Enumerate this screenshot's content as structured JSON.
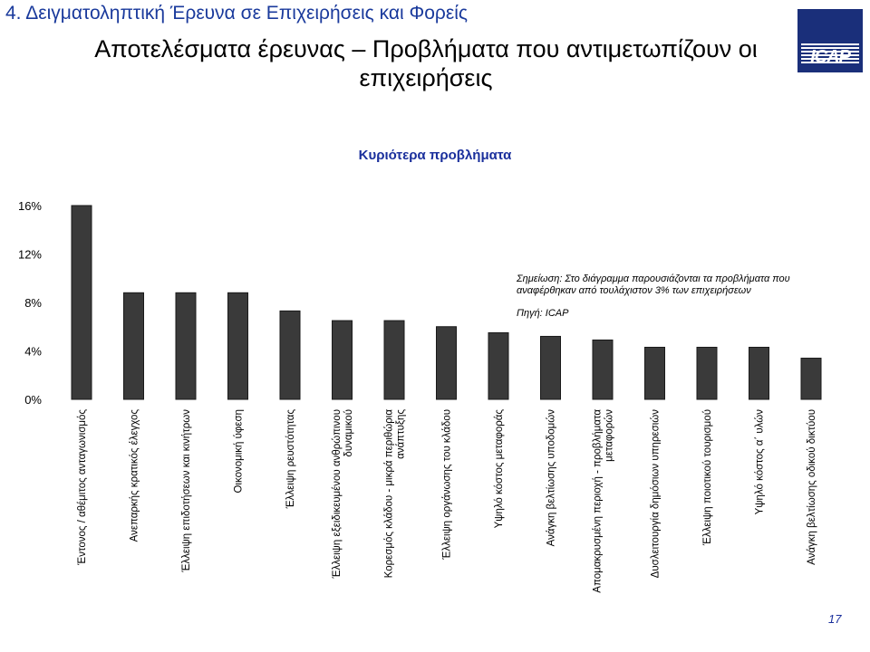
{
  "header": {
    "section": "4. Δειγματοληπτική Έρευνα σε Επιχειρήσεις και Φορείς",
    "title": "Αποτελέσματα έρευνας – Προβλήματα που αντιμετωπίζουν οι επιχειρήσεις",
    "logo_text": "ICAP"
  },
  "note": "Σημείωση: Στο διάγραμμα παρουσιάζονται τα προβλήματα που αναφέρθηκαν από τουλάχιστον 3% των επιχειρήσεων",
  "source": "Πηγή: ICAP",
  "page_number": "17",
  "colors": {
    "bar": "#3a3a3a",
    "heading": "#1a3a9c",
    "chart_title": "#1a2f9c"
  },
  "chart_data": {
    "type": "bar",
    "title": "Κυριότερα προβλήματα",
    "xlabel": "",
    "ylabel": "",
    "ylim": [
      0,
      16
    ],
    "yticks": [
      "0%",
      "4%",
      "8%",
      "12%",
      "16%"
    ],
    "grid": false,
    "categories": [
      "Έντονος / αθέμιτος ανταγωνισμός",
      "Ανεπαρκής κρατικός έλεγχος",
      "Έλλειψη επιδοτήσεων και κινήτρων",
      "Οικονομική ύφεση",
      "Έλλειψη ρευστότητας",
      "Έλλειψη εξειδικευμένου ανθρώπινου δυναμικού",
      "Κορεσμός κλάδου - μικρά περιθώρια ανάπτυξης",
      "Έλλειψη οργάνωσης του κλάδου",
      "Υψηλό κόστος μεταφοράς",
      "Ανάγκη βελτίωσης υποδομών",
      "Απομακρυσμένη περιοχή - προβλήματα μεταφορών",
      "Δυσλειτουργία δημόσιων υπηρεσιών",
      "Έλλειψη ποιοτικού τουρισμού",
      "Υψηλό κόστος α΄ υλών",
      "Ανάγκη βελτίωσης οδικού δικτύου"
    ],
    "values": [
      16.0,
      8.8,
      8.8,
      8.8,
      7.3,
      6.5,
      6.5,
      6.0,
      5.5,
      5.2,
      4.9,
      4.3,
      4.3,
      4.3,
      3.4
    ]
  }
}
